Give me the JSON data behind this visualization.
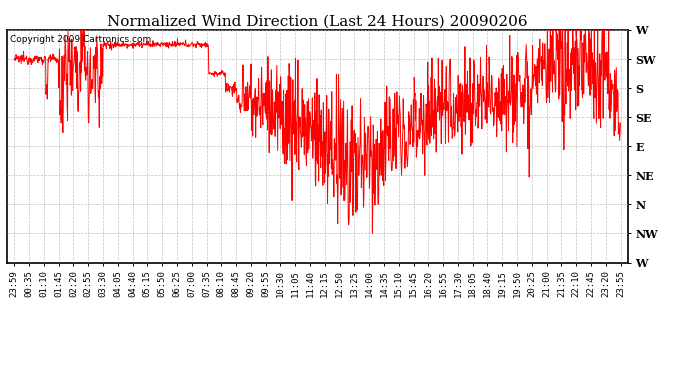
{
  "title": "Normalized Wind Direction (Last 24 Hours) 20090206",
  "copyright_text": "Copyright 2009 Cartronics.com",
  "line_color": "#ff0000",
  "background_color": "#ffffff",
  "grid_color": "#b0b0b0",
  "ytick_labels": [
    "W",
    "NW",
    "N",
    "NE",
    "E",
    "SE",
    "S",
    "SW",
    "W"
  ],
  "ytick_values": [
    0,
    1,
    2,
    3,
    4,
    5,
    6,
    7,
    8
  ],
  "ylim": [
    0,
    8
  ],
  "xtick_labels": [
    "23:59",
    "00:35",
    "01:10",
    "01:45",
    "02:20",
    "02:55",
    "03:30",
    "04:05",
    "04:40",
    "05:15",
    "05:50",
    "06:25",
    "07:00",
    "07:35",
    "08:10",
    "08:45",
    "09:20",
    "09:55",
    "10:30",
    "11:05",
    "11:40",
    "12:15",
    "12:50",
    "13:25",
    "14:00",
    "14:35",
    "15:10",
    "15:45",
    "16:20",
    "16:55",
    "17:30",
    "18:05",
    "18:40",
    "19:15",
    "19:50",
    "20:25",
    "21:00",
    "21:35",
    "22:10",
    "22:45",
    "23:20",
    "23:55"
  ],
  "title_fontsize": 11,
  "copyright_fontsize": 6.5,
  "tick_fontsize": 6.5,
  "ytick_fontsize": 8,
  "line_width": 0.7
}
